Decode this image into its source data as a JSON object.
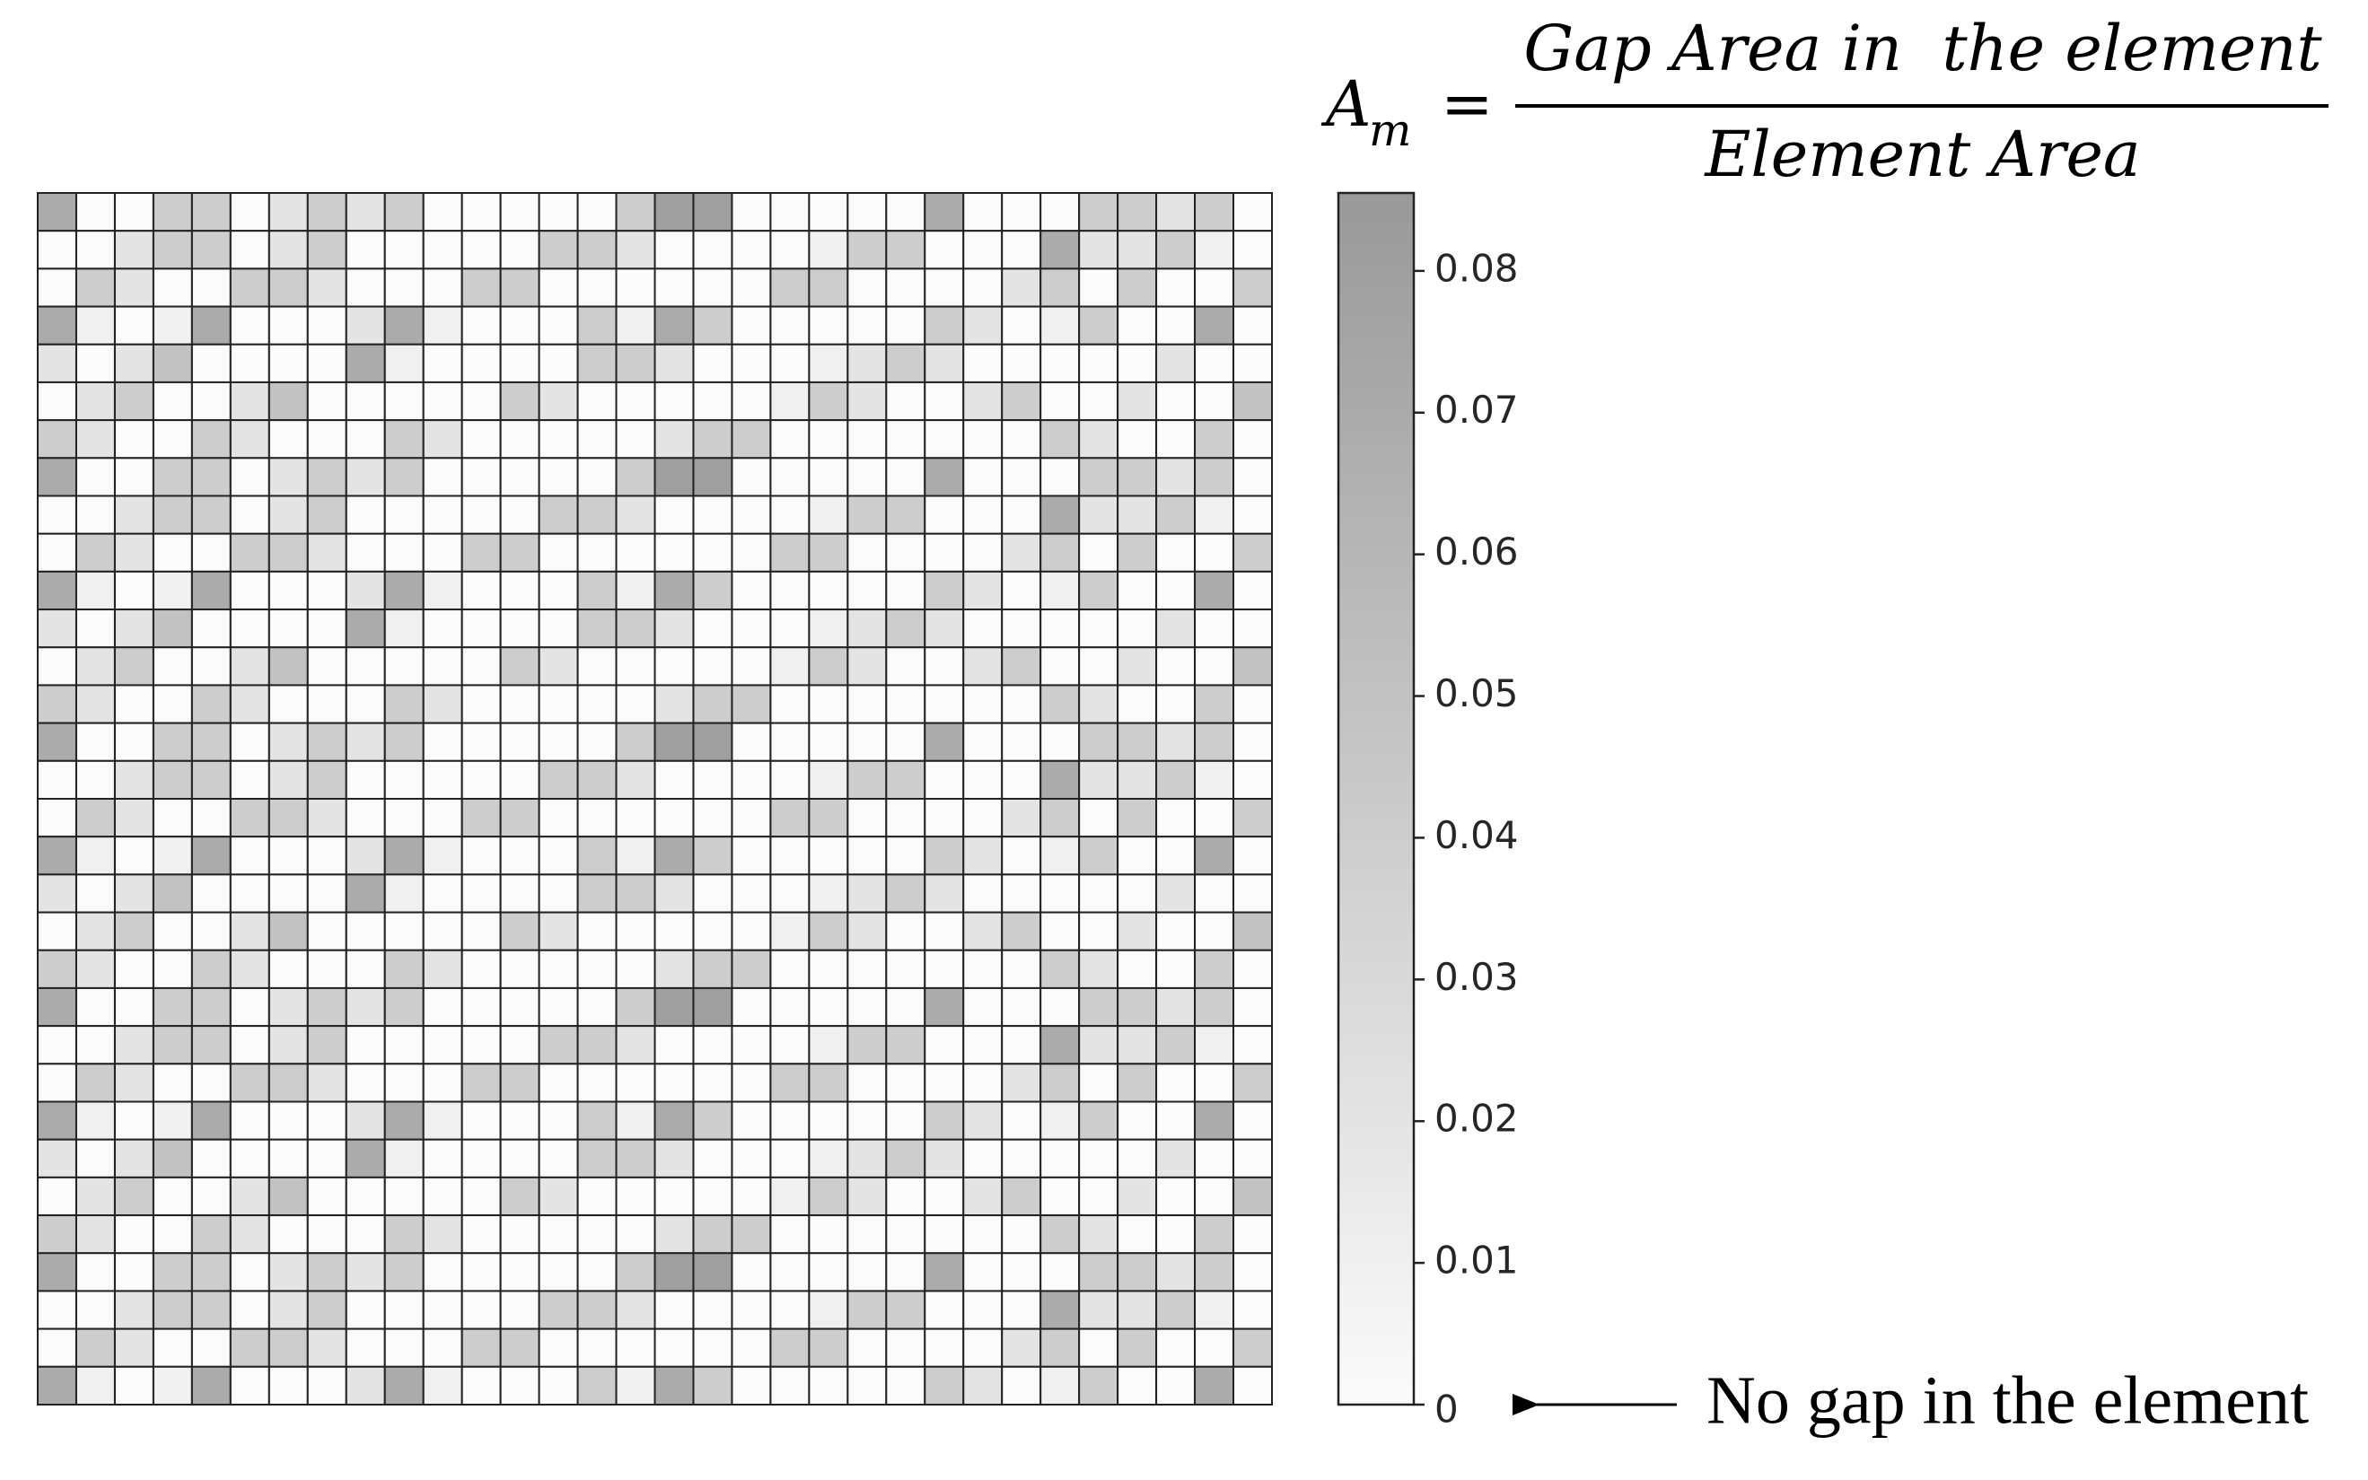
{
  "chart_data": {
    "type": "heatmap",
    "formula": {
      "lhs": "A",
      "lhs_sub": "m",
      "equals": "=",
      "numerator": "Gap Area in  the element",
      "denominator": "Element Area"
    },
    "annotation": "No gap in the element",
    "clim": [
      0,
      0.0855
    ],
    "cticks": [
      0,
      0.01,
      0.02,
      0.03,
      0.04,
      0.05,
      0.06,
      0.07,
      0.08
    ],
    "colormap": [
      "#fbfbfb",
      "#999999"
    ],
    "values": [
      [
        0.07,
        0,
        0,
        0.04,
        0.04,
        0,
        0.02,
        0.04,
        0.02,
        0.04,
        0,
        0,
        0,
        0,
        0,
        0.04,
        0.08,
        0.08,
        0,
        0,
        0,
        0,
        0,
        0.07,
        0,
        0,
        0,
        0.04,
        0.04,
        0.02,
        0.04,
        0
      ],
      [
        0,
        0,
        0.02,
        0.04,
        0.04,
        0,
        0.02,
        0.04,
        0,
        0,
        0,
        0,
        0,
        0.04,
        0.04,
        0.02,
        0,
        0,
        0,
        0,
        0.01,
        0.04,
        0.04,
        0,
        0,
        0,
        0.07,
        0.02,
        0.02,
        0.04,
        0.01,
        0
      ],
      [
        0,
        0.04,
        0.02,
        0,
        0,
        0.04,
        0.04,
        0.02,
        0,
        0,
        0,
        0.04,
        0.04,
        0,
        0,
        0,
        0,
        0,
        0,
        0.04,
        0.04,
        0,
        0,
        0,
        0,
        0.02,
        0.04,
        0,
        0.04,
        0,
        0,
        0.04
      ],
      [
        0.07,
        0.01,
        0,
        0.01,
        0.07,
        0,
        0,
        0,
        0.02,
        0.07,
        0.01,
        0,
        0,
        0,
        0.04,
        0.01,
        0.07,
        0.04,
        0,
        0,
        0,
        0,
        0,
        0.04,
        0.02,
        0,
        0.01,
        0.04,
        0,
        0,
        0.07,
        0
      ],
      [
        0.02,
        0,
        0.02,
        0.05,
        0,
        0,
        0,
        0,
        0.07,
        0.01,
        0,
        0,
        0,
        0,
        0.04,
        0.04,
        0.02,
        0,
        0,
        0,
        0.01,
        0.02,
        0.04,
        0.02,
        0,
        0,
        0,
        0,
        0,
        0.02,
        0,
        0
      ],
      [
        0,
        0.02,
        0.04,
        0,
        0,
        0.02,
        0.05,
        0,
        0,
        0,
        0,
        0,
        0.04,
        0.02,
        0,
        0,
        0,
        0,
        0,
        0.01,
        0.04,
        0.02,
        0,
        0,
        0.02,
        0.04,
        0,
        0,
        0.02,
        0,
        0,
        0.05
      ],
      [
        0.04,
        0.02,
        0,
        0,
        0.04,
        0.02,
        0,
        0,
        0,
        0.04,
        0.02,
        0,
        0,
        0,
        0,
        0,
        0.02,
        0.04,
        0.04,
        0,
        0,
        0,
        0,
        0,
        0,
        0,
        0.04,
        0.02,
        0,
        0,
        0.04,
        0
      ],
      [
        0.07,
        0,
        0,
        0.04,
        0.04,
        0,
        0.02,
        0.04,
        0.02,
        0.04,
        0,
        0,
        0,
        0,
        0,
        0.04,
        0.08,
        0.08,
        0,
        0,
        0,
        0,
        0,
        0.07,
        0,
        0,
        0,
        0.04,
        0.04,
        0.02,
        0.04,
        0
      ],
      [
        0,
        0,
        0.02,
        0.04,
        0.04,
        0,
        0.02,
        0.04,
        0,
        0,
        0,
        0,
        0,
        0.04,
        0.04,
        0.02,
        0,
        0,
        0,
        0,
        0.01,
        0.04,
        0.04,
        0,
        0,
        0,
        0.07,
        0.02,
        0.02,
        0.04,
        0.01,
        0
      ],
      [
        0,
        0.04,
        0.02,
        0,
        0,
        0.04,
        0.04,
        0.02,
        0,
        0,
        0,
        0.04,
        0.04,
        0,
        0,
        0,
        0,
        0,
        0,
        0.04,
        0.04,
        0,
        0,
        0,
        0,
        0.02,
        0.04,
        0,
        0.04,
        0,
        0,
        0.04
      ],
      [
        0.07,
        0.01,
        0,
        0.01,
        0.07,
        0,
        0,
        0,
        0.02,
        0.07,
        0.01,
        0,
        0,
        0,
        0.04,
        0.01,
        0.07,
        0.04,
        0,
        0,
        0,
        0,
        0,
        0.04,
        0.02,
        0,
        0.01,
        0.04,
        0,
        0,
        0.07,
        0
      ],
      [
        0.02,
        0,
        0.02,
        0.05,
        0,
        0,
        0,
        0,
        0.07,
        0.01,
        0,
        0,
        0,
        0,
        0.04,
        0.04,
        0.02,
        0,
        0,
        0,
        0.01,
        0.02,
        0.04,
        0.02,
        0,
        0,
        0,
        0,
        0,
        0.02,
        0,
        0
      ],
      [
        0,
        0.02,
        0.04,
        0,
        0,
        0.02,
        0.05,
        0,
        0,
        0,
        0,
        0,
        0.04,
        0.02,
        0,
        0,
        0,
        0,
        0,
        0.01,
        0.04,
        0.02,
        0,
        0,
        0.02,
        0.04,
        0,
        0,
        0.02,
        0,
        0,
        0.05
      ],
      [
        0.04,
        0.02,
        0,
        0,
        0.04,
        0.02,
        0,
        0,
        0,
        0.04,
        0.02,
        0,
        0,
        0,
        0,
        0,
        0.02,
        0.04,
        0.04,
        0,
        0,
        0,
        0,
        0,
        0,
        0,
        0.04,
        0.02,
        0,
        0,
        0.04,
        0
      ],
      [
        0.07,
        0,
        0,
        0.04,
        0.04,
        0,
        0.02,
        0.04,
        0.02,
        0.04,
        0,
        0,
        0,
        0,
        0,
        0.04,
        0.08,
        0.08,
        0,
        0,
        0,
        0,
        0,
        0.07,
        0,
        0,
        0,
        0.04,
        0.04,
        0.02,
        0.04,
        0
      ],
      [
        0,
        0,
        0.02,
        0.04,
        0.04,
        0,
        0.02,
        0.04,
        0,
        0,
        0,
        0,
        0,
        0.04,
        0.04,
        0.02,
        0,
        0,
        0,
        0,
        0.01,
        0.04,
        0.04,
        0,
        0,
        0,
        0.07,
        0.02,
        0.02,
        0.04,
        0.01,
        0
      ],
      [
        0,
        0.04,
        0.02,
        0,
        0,
        0.04,
        0.04,
        0.02,
        0,
        0,
        0,
        0.04,
        0.04,
        0,
        0,
        0,
        0,
        0,
        0,
        0.04,
        0.04,
        0,
        0,
        0,
        0,
        0.02,
        0.04,
        0,
        0.04,
        0,
        0,
        0.04
      ],
      [
        0.07,
        0.01,
        0,
        0.01,
        0.07,
        0,
        0,
        0,
        0.02,
        0.07,
        0.01,
        0,
        0,
        0,
        0.04,
        0.01,
        0.07,
        0.04,
        0,
        0,
        0,
        0,
        0,
        0.04,
        0.02,
        0,
        0.01,
        0.04,
        0,
        0,
        0.07,
        0
      ],
      [
        0.02,
        0,
        0.02,
        0.05,
        0,
        0,
        0,
        0,
        0.07,
        0.01,
        0,
        0,
        0,
        0,
        0.04,
        0.04,
        0.02,
        0,
        0,
        0,
        0.01,
        0.02,
        0.04,
        0.02,
        0,
        0,
        0,
        0,
        0,
        0.02,
        0,
        0
      ],
      [
        0,
        0.02,
        0.04,
        0,
        0,
        0.02,
        0.05,
        0,
        0,
        0,
        0,
        0,
        0.04,
        0.02,
        0,
        0,
        0,
        0,
        0,
        0.01,
        0.04,
        0.02,
        0,
        0,
        0.02,
        0.04,
        0,
        0,
        0.02,
        0,
        0,
        0.05
      ],
      [
        0.04,
        0.02,
        0,
        0,
        0.04,
        0.02,
        0,
        0,
        0,
        0.04,
        0.02,
        0,
        0,
        0,
        0,
        0,
        0.02,
        0.04,
        0.04,
        0,
        0,
        0,
        0,
        0,
        0,
        0,
        0.04,
        0.02,
        0,
        0,
        0.04,
        0
      ],
      [
        0.07,
        0,
        0,
        0.04,
        0.04,
        0,
        0.02,
        0.04,
        0.02,
        0.04,
        0,
        0,
        0,
        0,
        0,
        0.04,
        0.08,
        0.08,
        0,
        0,
        0,
        0,
        0,
        0.07,
        0,
        0,
        0,
        0.04,
        0.04,
        0.02,
        0.04,
        0
      ],
      [
        0,
        0,
        0.02,
        0.04,
        0.04,
        0,
        0.02,
        0.04,
        0,
        0,
        0,
        0,
        0,
        0.04,
        0.04,
        0.02,
        0,
        0,
        0,
        0,
        0.01,
        0.04,
        0.04,
        0,
        0,
        0,
        0.07,
        0.02,
        0.02,
        0.04,
        0.01,
        0
      ],
      [
        0,
        0.04,
        0.02,
        0,
        0,
        0.04,
        0.04,
        0.02,
        0,
        0,
        0,
        0.04,
        0.04,
        0,
        0,
        0,
        0,
        0,
        0,
        0.04,
        0.04,
        0,
        0,
        0,
        0,
        0.02,
        0.04,
        0,
        0.04,
        0,
        0,
        0.04
      ],
      [
        0.07,
        0.01,
        0,
        0.01,
        0.07,
        0,
        0,
        0,
        0.02,
        0.07,
        0.01,
        0,
        0,
        0,
        0.04,
        0.01,
        0.07,
        0.04,
        0,
        0,
        0,
        0,
        0,
        0.04,
        0.02,
        0,
        0.01,
        0.04,
        0,
        0,
        0.07,
        0
      ],
      [
        0.02,
        0,
        0.02,
        0.05,
        0,
        0,
        0,
        0,
        0.07,
        0.01,
        0,
        0,
        0,
        0,
        0.04,
        0.04,
        0.02,
        0,
        0,
        0,
        0.01,
        0.02,
        0.04,
        0.02,
        0,
        0,
        0,
        0,
        0,
        0.02,
        0,
        0
      ],
      [
        0,
        0.02,
        0.04,
        0,
        0,
        0.02,
        0.05,
        0,
        0,
        0,
        0,
        0,
        0.04,
        0.02,
        0,
        0,
        0,
        0,
        0,
        0.01,
        0.04,
        0.02,
        0,
        0,
        0.02,
        0.04,
        0,
        0,
        0.02,
        0,
        0,
        0.05
      ],
      [
        0.04,
        0.02,
        0,
        0,
        0.04,
        0.02,
        0,
        0,
        0,
        0.04,
        0.02,
        0,
        0,
        0,
        0,
        0,
        0.02,
        0.04,
        0.04,
        0,
        0,
        0,
        0,
        0,
        0,
        0,
        0.04,
        0.02,
        0,
        0,
        0.04,
        0
      ],
      [
        0.07,
        0,
        0,
        0.04,
        0.04,
        0,
        0.02,
        0.04,
        0.02,
        0.04,
        0,
        0,
        0,
        0,
        0,
        0.04,
        0.08,
        0.08,
        0,
        0,
        0,
        0,
        0,
        0.07,
        0,
        0,
        0,
        0.04,
        0.04,
        0.02,
        0.04,
        0
      ],
      [
        0,
        0,
        0.02,
        0.04,
        0.04,
        0,
        0.02,
        0.04,
        0,
        0,
        0,
        0,
        0,
        0.04,
        0.04,
        0.02,
        0,
        0,
        0,
        0,
        0.01,
        0.04,
        0.04,
        0,
        0,
        0,
        0.07,
        0.02,
        0.02,
        0.04,
        0.01,
        0
      ],
      [
        0,
        0.04,
        0.02,
        0,
        0,
        0.04,
        0.04,
        0.02,
        0,
        0,
        0,
        0.04,
        0.04,
        0,
        0,
        0,
        0,
        0,
        0,
        0.04,
        0.04,
        0,
        0,
        0,
        0,
        0.02,
        0.04,
        0,
        0.04,
        0,
        0,
        0.04
      ],
      [
        0.07,
        0.01,
        0,
        0.01,
        0.07,
        0,
        0,
        0,
        0.02,
        0.07,
        0.01,
        0,
        0,
        0,
        0.04,
        0.01,
        0.07,
        0.04,
        0,
        0,
        0,
        0,
        0,
        0.04,
        0.02,
        0,
        0.01,
        0.04,
        0,
        0,
        0.07,
        0
      ]
    ]
  }
}
